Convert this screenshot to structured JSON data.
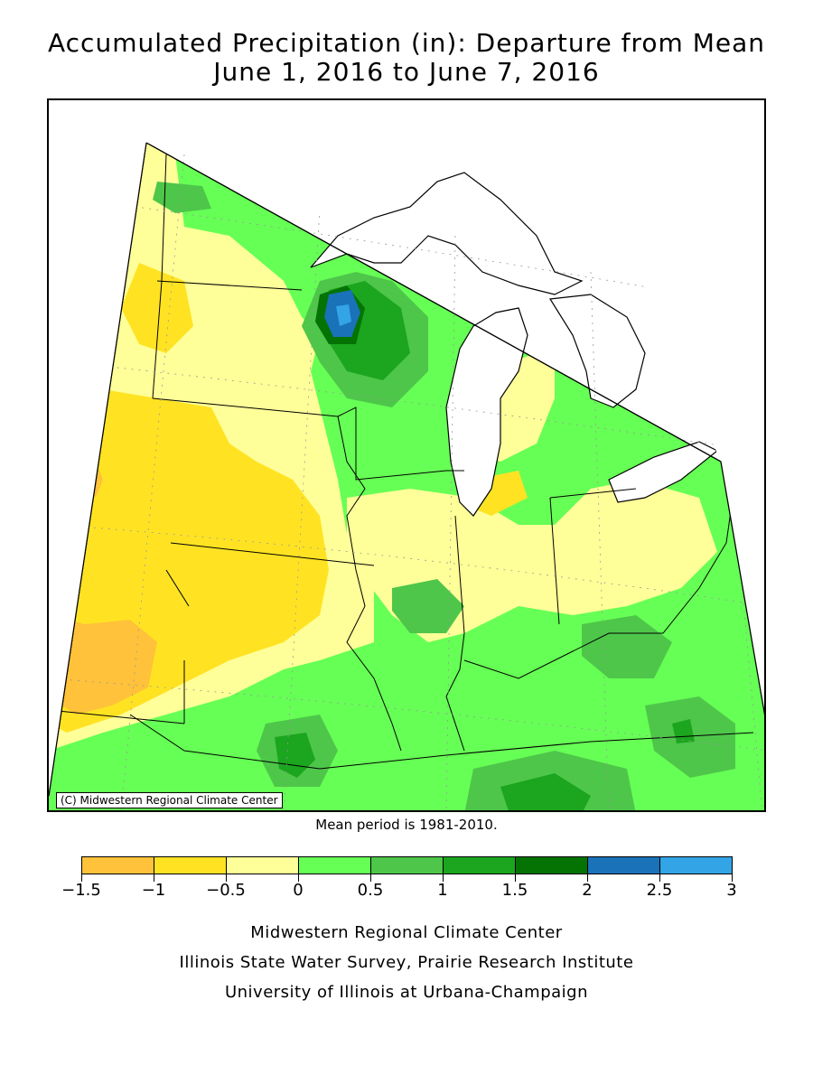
{
  "title": {
    "line1": "Accumulated Precipitation (in): Departure from Mean",
    "line2": "June 1, 2016 to June 7, 2016"
  },
  "map": {
    "copyright": "(C) Midwestern Regional Climate Center",
    "mean_period": "Mean period is 1981-2010."
  },
  "legend": {
    "bins": [
      {
        "from": -1.5,
        "to": -1,
        "color": "#ffc23a"
      },
      {
        "from": -1,
        "to": -0.5,
        "color": "#ffe323"
      },
      {
        "from": -0.5,
        "to": 0,
        "color": "#ffff99"
      },
      {
        "from": 0,
        "to": 0.5,
        "color": "#66ff55"
      },
      {
        "from": 0.5,
        "to": 1,
        "color": "#4ec64a"
      },
      {
        "from": 1,
        "to": 1.5,
        "color": "#1ca51f"
      },
      {
        "from": 1.5,
        "to": 2,
        "color": "#047304"
      },
      {
        "from": 2,
        "to": 2.5,
        "color": "#1a72b8"
      },
      {
        "from": 2.5,
        "to": 3,
        "color": "#33a4e6"
      }
    ],
    "tick_labels": [
      "-1.5",
      "-1",
      "-0.5",
      "0",
      "0.5",
      "1",
      "1.5",
      "2",
      "2.5",
      "3"
    ]
  },
  "credits": {
    "line1": "Midwestern Regional Climate Center",
    "line2": "Illinois State Water Survey, Prairie Research Institute",
    "line3": "University of Illinois at Urbana-Champaign"
  }
}
